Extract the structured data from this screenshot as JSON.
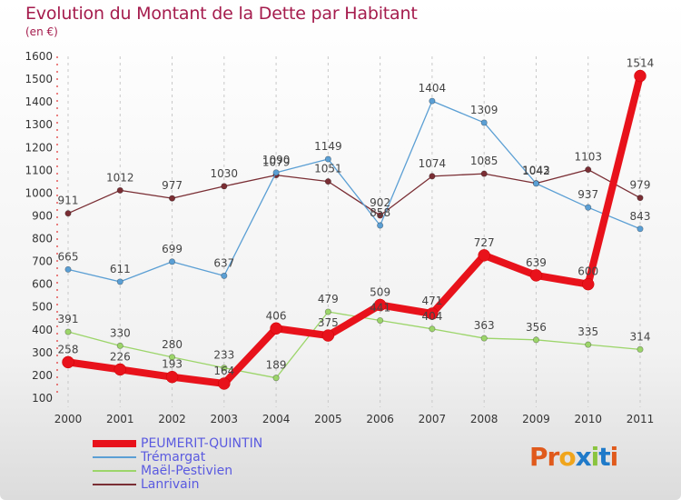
{
  "header": {
    "title": "Evolution du Montant de la Dette par Habitant",
    "unit": "(en €)"
  },
  "logo": {
    "text": "Proxiti",
    "colors": [
      "#e05a1c",
      "#e05a1c",
      "#f0a51c",
      "#1f7ac9",
      "#8ac43f",
      "#1f7ac9",
      "#e05a1c"
    ]
  },
  "chart_data": {
    "type": "line",
    "title": "Evolution du Montant de la Dette par Habitant",
    "subtitle": "(en €)",
    "x": [
      "2000",
      "2001",
      "2002",
      "2003",
      "2004",
      "2005",
      "2006",
      "2007",
      "2008",
      "2009",
      "2010",
      "2011"
    ],
    "ylim": [
      100,
      1600
    ],
    "yticks": [
      "100",
      "200",
      "300",
      "400",
      "500",
      "600",
      "700",
      "800",
      "900",
      "1000",
      "1100",
      "1200",
      "1300",
      "1400",
      "1500",
      "1600"
    ],
    "grid": "vertical dashed",
    "legend_position": "bottom-left",
    "series": [
      {
        "name": "PEUMERIT-QUINTIN",
        "color": "#e8121b",
        "values": [
          258,
          226,
          193,
          164,
          406,
          375,
          509,
          471,
          727,
          639,
          600,
          1514
        ],
        "labels": [
          "258",
          "226",
          "193",
          "164",
          "406",
          "375",
          "509",
          "471",
          "727",
          "639",
          "600",
          "1514"
        ]
      },
      {
        "name": "Trémargat",
        "color": "#5b9fd4",
        "values": [
          665,
          611,
          699,
          637,
          1090,
          1149,
          858,
          1404,
          1309,
          1042,
          937,
          843
        ],
        "labels": [
          "665",
          "611",
          "699",
          "637",
          "1090",
          "1149",
          "858",
          "1404",
          "1309",
          "1042",
          "937",
          "843"
        ]
      },
      {
        "name": "Maël-Pestivien",
        "color": "#9cd56a",
        "values": [
          391,
          330,
          280,
          233,
          189,
          479,
          441,
          404,
          363,
          356,
          335,
          314
        ],
        "labels": [
          "391",
          "330",
          "280",
          "233",
          "189",
          "479",
          "441",
          "404",
          "363",
          "356",
          "335",
          "314"
        ]
      },
      {
        "name": "Lanrivain",
        "color": "#7a2e34",
        "values": [
          911,
          1012,
          977,
          1030,
          1079,
          1051,
          902,
          1074,
          1085,
          1043,
          1103,
          979
        ],
        "labels": [
          "911",
          "1012",
          "977",
          "1030",
          "1079",
          "1051",
          "902",
          "1074",
          "1085",
          "1043",
          "1103",
          "979"
        ]
      }
    ]
  }
}
